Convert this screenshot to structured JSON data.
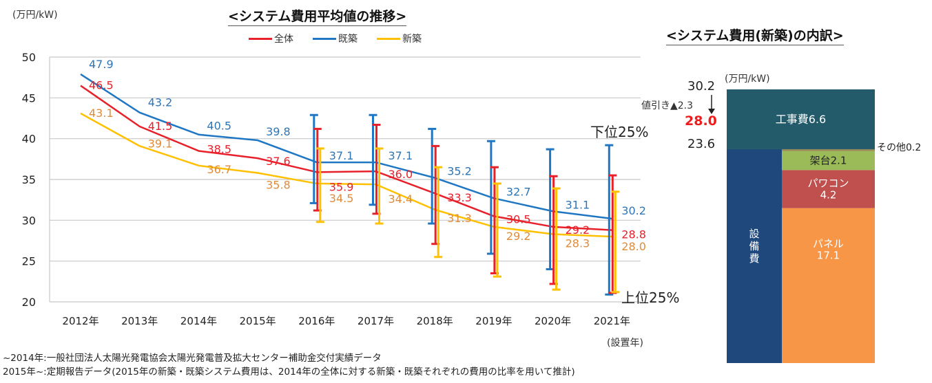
{
  "left_chart": {
    "title": "<システム費用平均値の推移>",
    "unit": "(万円/kW)",
    "legend": [
      {
        "label": "全体",
        "color": "#e8202a"
      },
      {
        "label": "既築",
        "color": "#1f77c4"
      },
      {
        "label": "新築",
        "color": "#ffc000"
      }
    ],
    "annotation_top": "下位25%",
    "annotation_bottom": "上位25%",
    "x_suffix_label": "(設置年)"
  },
  "right_chart": {
    "title": "<システム費用(新築)の内訳>",
    "unit": "(万円/kW)",
    "total_label": "30.2",
    "discount_label": "値引き▲2.3",
    "net_label": "28.0",
    "equipment_label_value": "23.6",
    "equipment_vertical_label": "設備費",
    "other_label": "その他0.2"
  },
  "notes": [
    "~2014年:一般社団法人太陽光発電協会太陽光発電普及拡大センター補助金交付実績データ",
    "2015年~:定期報告データ(2015年の新築・既築システム費用は、2014年の全体に対する新築・既築それぞれの費用の比率を用いて推計)"
  ],
  "chart_data": [
    {
      "type": "line",
      "title": "<システム費用平均値の推移>",
      "xlabel": "(設置年)",
      "ylabel": "(万円/kW)",
      "ylim": [
        20,
        50
      ],
      "yticks": [
        20,
        25,
        30,
        35,
        40,
        45,
        50
      ],
      "grid": true,
      "legend_position": "top",
      "categories": [
        "2012年",
        "2013年",
        "2014年",
        "2015年",
        "2016年",
        "2017年",
        "2018年",
        "2019年",
        "2020年",
        "2021年"
      ],
      "series": [
        {
          "name": "既築",
          "color": "#1f77c4",
          "label_color": "#2e75b6",
          "values": [
            47.9,
            43.2,
            40.5,
            39.8,
            37.1,
            37.1,
            35.2,
            32.7,
            31.1,
            30.2
          ],
          "error_high": [
            null,
            null,
            null,
            null,
            42.9,
            42.9,
            41.2,
            39.7,
            38.7,
            39.2
          ],
          "error_low": [
            null,
            null,
            null,
            null,
            32.1,
            31.9,
            29.6,
            25.9,
            24.0,
            20.9
          ]
        },
        {
          "name": "全体",
          "color": "#e8202a",
          "label_color": "#e8202a",
          "values": [
            46.5,
            41.5,
            38.5,
            37.6,
            35.9,
            36.0,
            33.3,
            30.5,
            29.2,
            28.8
          ],
          "error_high": [
            null,
            null,
            null,
            null,
            41.2,
            41.7,
            39.1,
            36.5,
            35.4,
            35.5
          ],
          "error_low": [
            null,
            null,
            null,
            null,
            31.2,
            30.8,
            27.1,
            23.5,
            22.2,
            21.1
          ]
        },
        {
          "name": "新築",
          "color": "#ffc000",
          "label_color": "#e08b3a",
          "values": [
            43.1,
            39.1,
            36.7,
            35.8,
            34.5,
            34.4,
            31.3,
            29.2,
            28.3,
            28.0
          ],
          "error_high": [
            null,
            null,
            null,
            null,
            38.8,
            38.8,
            36.5,
            34.5,
            33.9,
            33.5
          ],
          "error_low": [
            null,
            null,
            null,
            null,
            29.8,
            29.6,
            25.5,
            23.1,
            21.5,
            21.2
          ]
        }
      ],
      "annotations": [
        "下位25%",
        "上位25%"
      ]
    },
    {
      "type": "bar",
      "title": "<システム費用(新築)の内訳>",
      "ylabel": "(万円/kW)",
      "total": 30.2,
      "discount": 2.3,
      "net": 28.0,
      "equipment_total": 23.6,
      "segments": [
        {
          "name": "工事費",
          "value": 6.6,
          "label": "工事費6.6",
          "color": "#245b6b",
          "text_color": "#ffffff"
        },
        {
          "name": "その他",
          "value": 0.2,
          "label": "その他0.2",
          "color": "#9a8a55",
          "text_color": "#222222"
        },
        {
          "name": "架台",
          "value": 2.1,
          "label": "架台2.1",
          "color": "#9bbb59",
          "text_color": "#222222"
        },
        {
          "name": "パワコン",
          "value": 4.2,
          "label": "パワコン\n4.2",
          "color": "#c0504d",
          "text_color": "#ffffff"
        },
        {
          "name": "パネル",
          "value": 17.1,
          "label": "パネル\n17.1",
          "color": "#f79646",
          "text_color": "#ffffff"
        }
      ],
      "equipment_bar": {
        "name": "設備費",
        "value": 23.6,
        "color": "#1f497d"
      }
    }
  ]
}
